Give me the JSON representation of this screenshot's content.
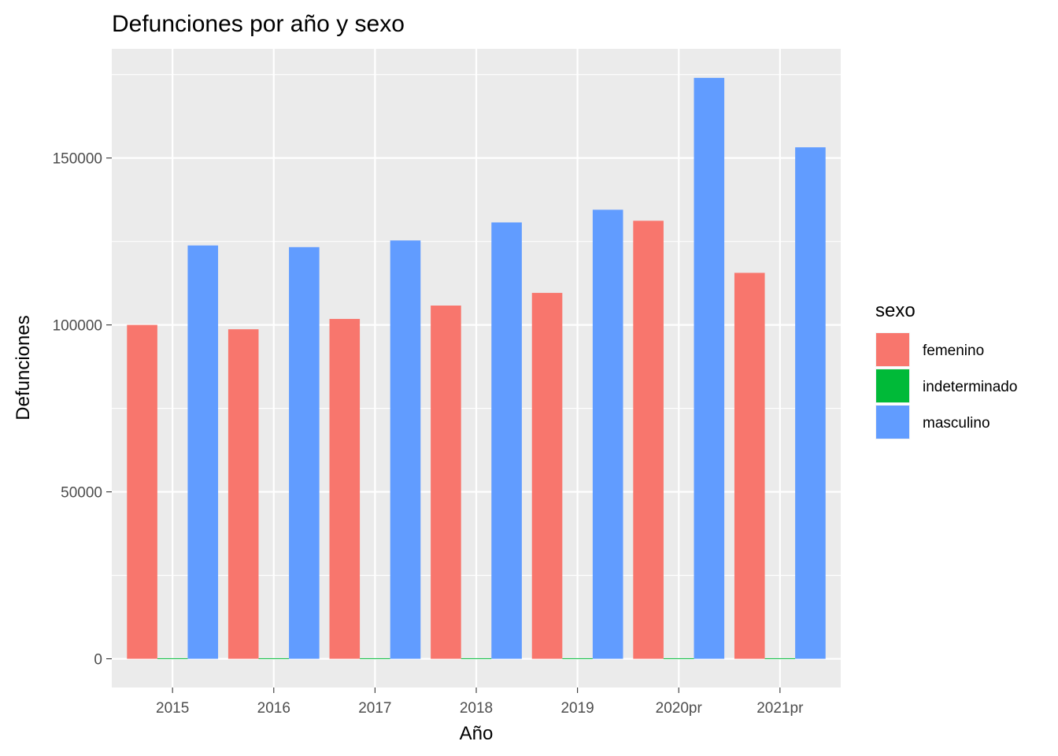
{
  "chart_data": {
    "type": "bar",
    "title": "Defunciones por año y sexo",
    "xlabel": "Año",
    "ylabel": "Defunciones",
    "categories": [
      "2015",
      "2016",
      "2017",
      "2018",
      "2019",
      "2020pr",
      "2021pr"
    ],
    "series": [
      {
        "name": "femenino",
        "color": "#F8766D",
        "values": [
          100000,
          98700,
          101800,
          105800,
          109600,
          131200,
          115600
        ]
      },
      {
        "name": "indeterminado",
        "color": "#00BA38",
        "values": [
          150,
          150,
          150,
          150,
          150,
          150,
          150
        ]
      },
      {
        "name": "masculino",
        "color": "#619CFF",
        "values": [
          123800,
          123300,
          125300,
          130700,
          134500,
          174000,
          153200
        ]
      }
    ],
    "ylim": [
      -8600,
      182700
    ],
    "yticks": [
      0,
      50000,
      100000,
      150000
    ],
    "grid": true,
    "legend": {
      "title": "sexo",
      "position": "right"
    },
    "background": "#EBEBEB"
  }
}
